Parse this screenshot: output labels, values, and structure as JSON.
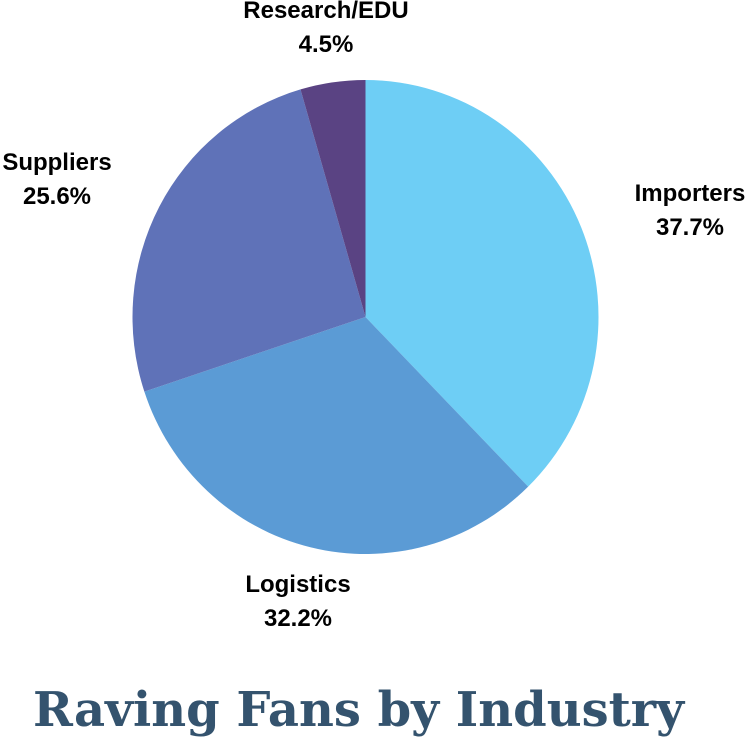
{
  "chart_data": {
    "type": "pie",
    "title": "Raving Fans by Industry",
    "title_color": "#34536E",
    "label_color": "#000000",
    "background": "#ffffff",
    "legend": "none",
    "start_angle_deg": 0,
    "direction": "clockwise",
    "slices": [
      {
        "label": "Importers",
        "value": 37.7,
        "pct_label": "37.7%",
        "color": "#6ECEF5"
      },
      {
        "label": "Logistics",
        "value": 32.2,
        "pct_label": "32.2%",
        "color": "#5B9BD5"
      },
      {
        "label": "Suppliers",
        "value": 25.6,
        "pct_label": "25.6%",
        "color": "#5F72B8"
      },
      {
        "label": "Research/EDU",
        "value": 4.5,
        "pct_label": "4.5%",
        "color": "#5A4383"
      }
    ]
  }
}
